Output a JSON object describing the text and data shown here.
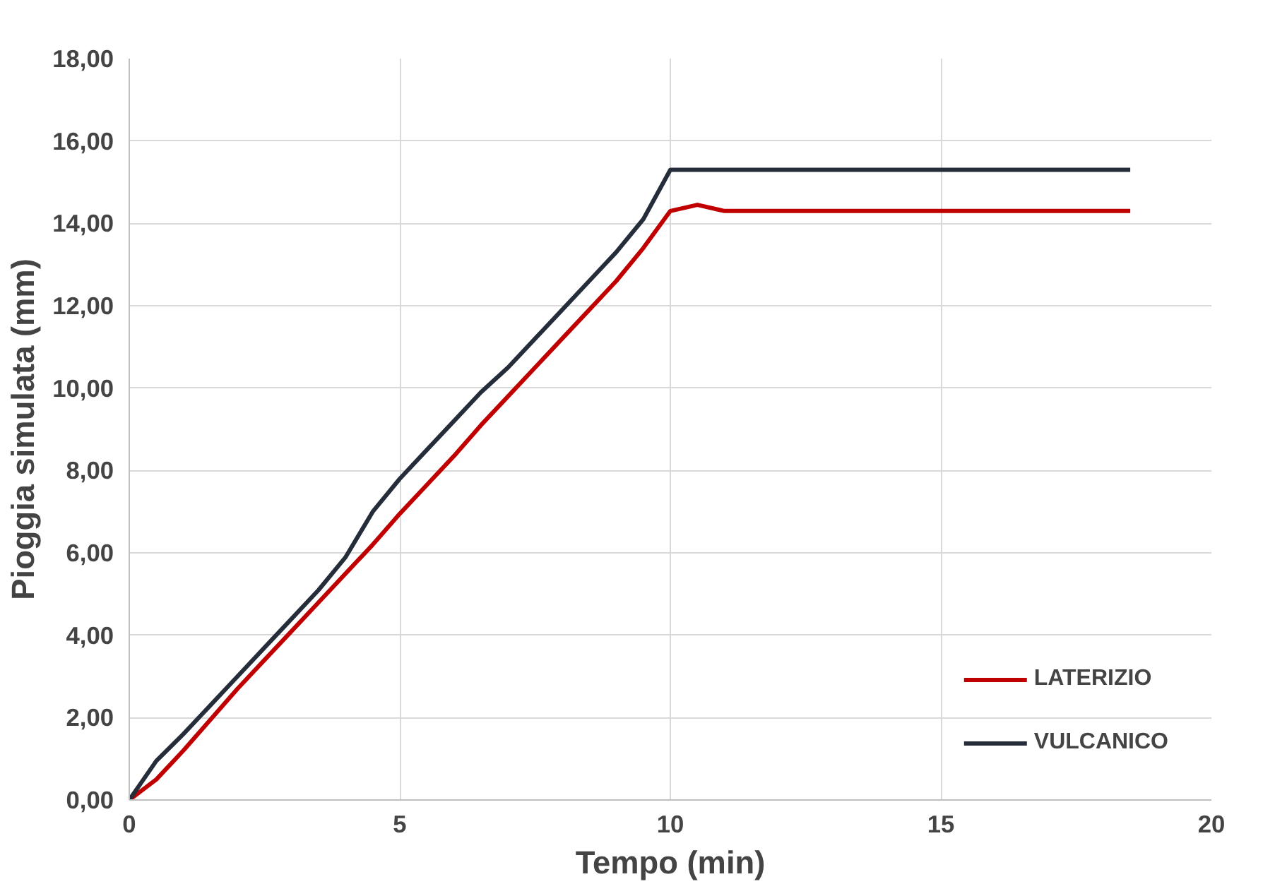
{
  "chart_data": {
    "type": "line",
    "xlabel": "Tempo (min)",
    "ylabel": "Pioggia simulata (mm)",
    "xlim": [
      0,
      20
    ],
    "xticks": [
      0,
      5,
      10,
      15,
      20
    ],
    "ylim": [
      0,
      18
    ],
    "yticks": [
      {
        "value": 0,
        "label": "0,00"
      },
      {
        "value": 2,
        "label": "2,00"
      },
      {
        "value": 4,
        "label": "4,00"
      },
      {
        "value": 6,
        "label": "6,00"
      },
      {
        "value": 8,
        "label": "8,00"
      },
      {
        "value": 10,
        "label": "10,00"
      },
      {
        "value": 12,
        "label": "12,00"
      },
      {
        "value": 14,
        "label": "14,00"
      },
      {
        "value": 16,
        "label": "16,00"
      },
      {
        "value": 18,
        "label": "18,00"
      }
    ],
    "grid": true,
    "legend": "bottom right",
    "marker": "none",
    "line_style": "solid",
    "series": [
      {
        "name": "LATERIZIO",
        "color": "#c00000",
        "x": [
          0,
          0.5,
          1,
          1.5,
          2,
          2.5,
          3,
          3.5,
          4,
          4.5,
          5,
          5.5,
          6,
          6.5,
          7,
          7.5,
          8,
          8.5,
          9,
          9.5,
          10,
          10.5,
          11,
          18.5
        ],
        "values": [
          0,
          0.5,
          1.2,
          1.95,
          2.7,
          3.4,
          4.1,
          4.8,
          5.5,
          6.2,
          6.95,
          7.65,
          8.35,
          9.1,
          9.8,
          10.5,
          11.2,
          11.9,
          12.6,
          13.4,
          14.3,
          14.45,
          14.3,
          14.3
        ]
      },
      {
        "name": "VULCANICO",
        "color": "#262d3a",
        "x": [
          0,
          0.5,
          1,
          1.5,
          2,
          2.5,
          3,
          3.5,
          4,
          4.5,
          5,
          5.5,
          6,
          6.5,
          7,
          7.5,
          8,
          8.5,
          9,
          9.5,
          10,
          18.5
        ],
        "values": [
          0,
          0.95,
          1.6,
          2.3,
          3.0,
          3.7,
          4.4,
          5.1,
          5.9,
          7.0,
          7.8,
          8.5,
          9.2,
          9.9,
          10.5,
          11.2,
          11.9,
          12.6,
          13.3,
          14.1,
          15.3,
          15.3
        ]
      }
    ]
  }
}
